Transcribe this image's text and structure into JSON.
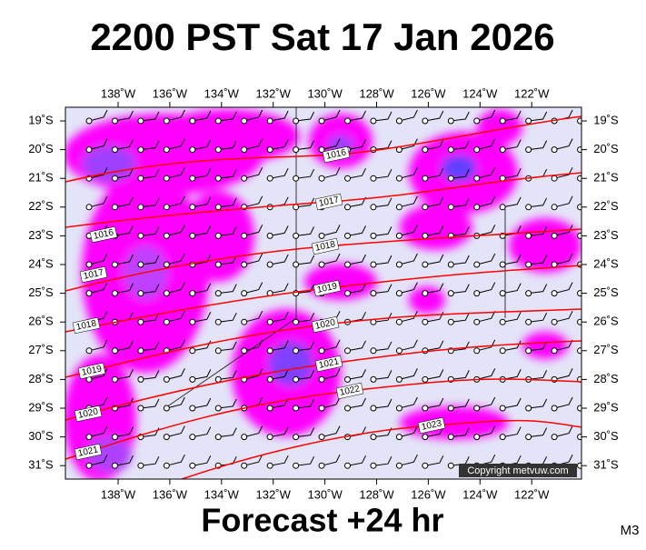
{
  "header": {
    "title": "2200 PST Sat 17 Jan 2026"
  },
  "map": {
    "lon_labels": [
      "138˚W",
      "136˚W",
      "134˚W",
      "132˚W",
      "130˚W",
      "128˚W",
      "126˚W",
      "124˚W",
      "122˚W"
    ],
    "lat_labels": [
      "19˚S",
      "20˚S",
      "21˚S",
      "22˚S",
      "23˚S",
      "24˚S",
      "25˚S",
      "26˚S",
      "27˚S",
      "28˚S",
      "29˚S",
      "30˚S",
      "31˚S"
    ],
    "isobar_labels": [
      1016,
      1017,
      1018,
      1019,
      1020,
      1021,
      1022,
      1023,
      1016,
      1017,
      1018,
      1019,
      1020,
      1021
    ],
    "copyright": "Copyright metvuw.com"
  },
  "footer": {
    "forecast": "Forecast +24 hr",
    "model": "M3"
  }
}
